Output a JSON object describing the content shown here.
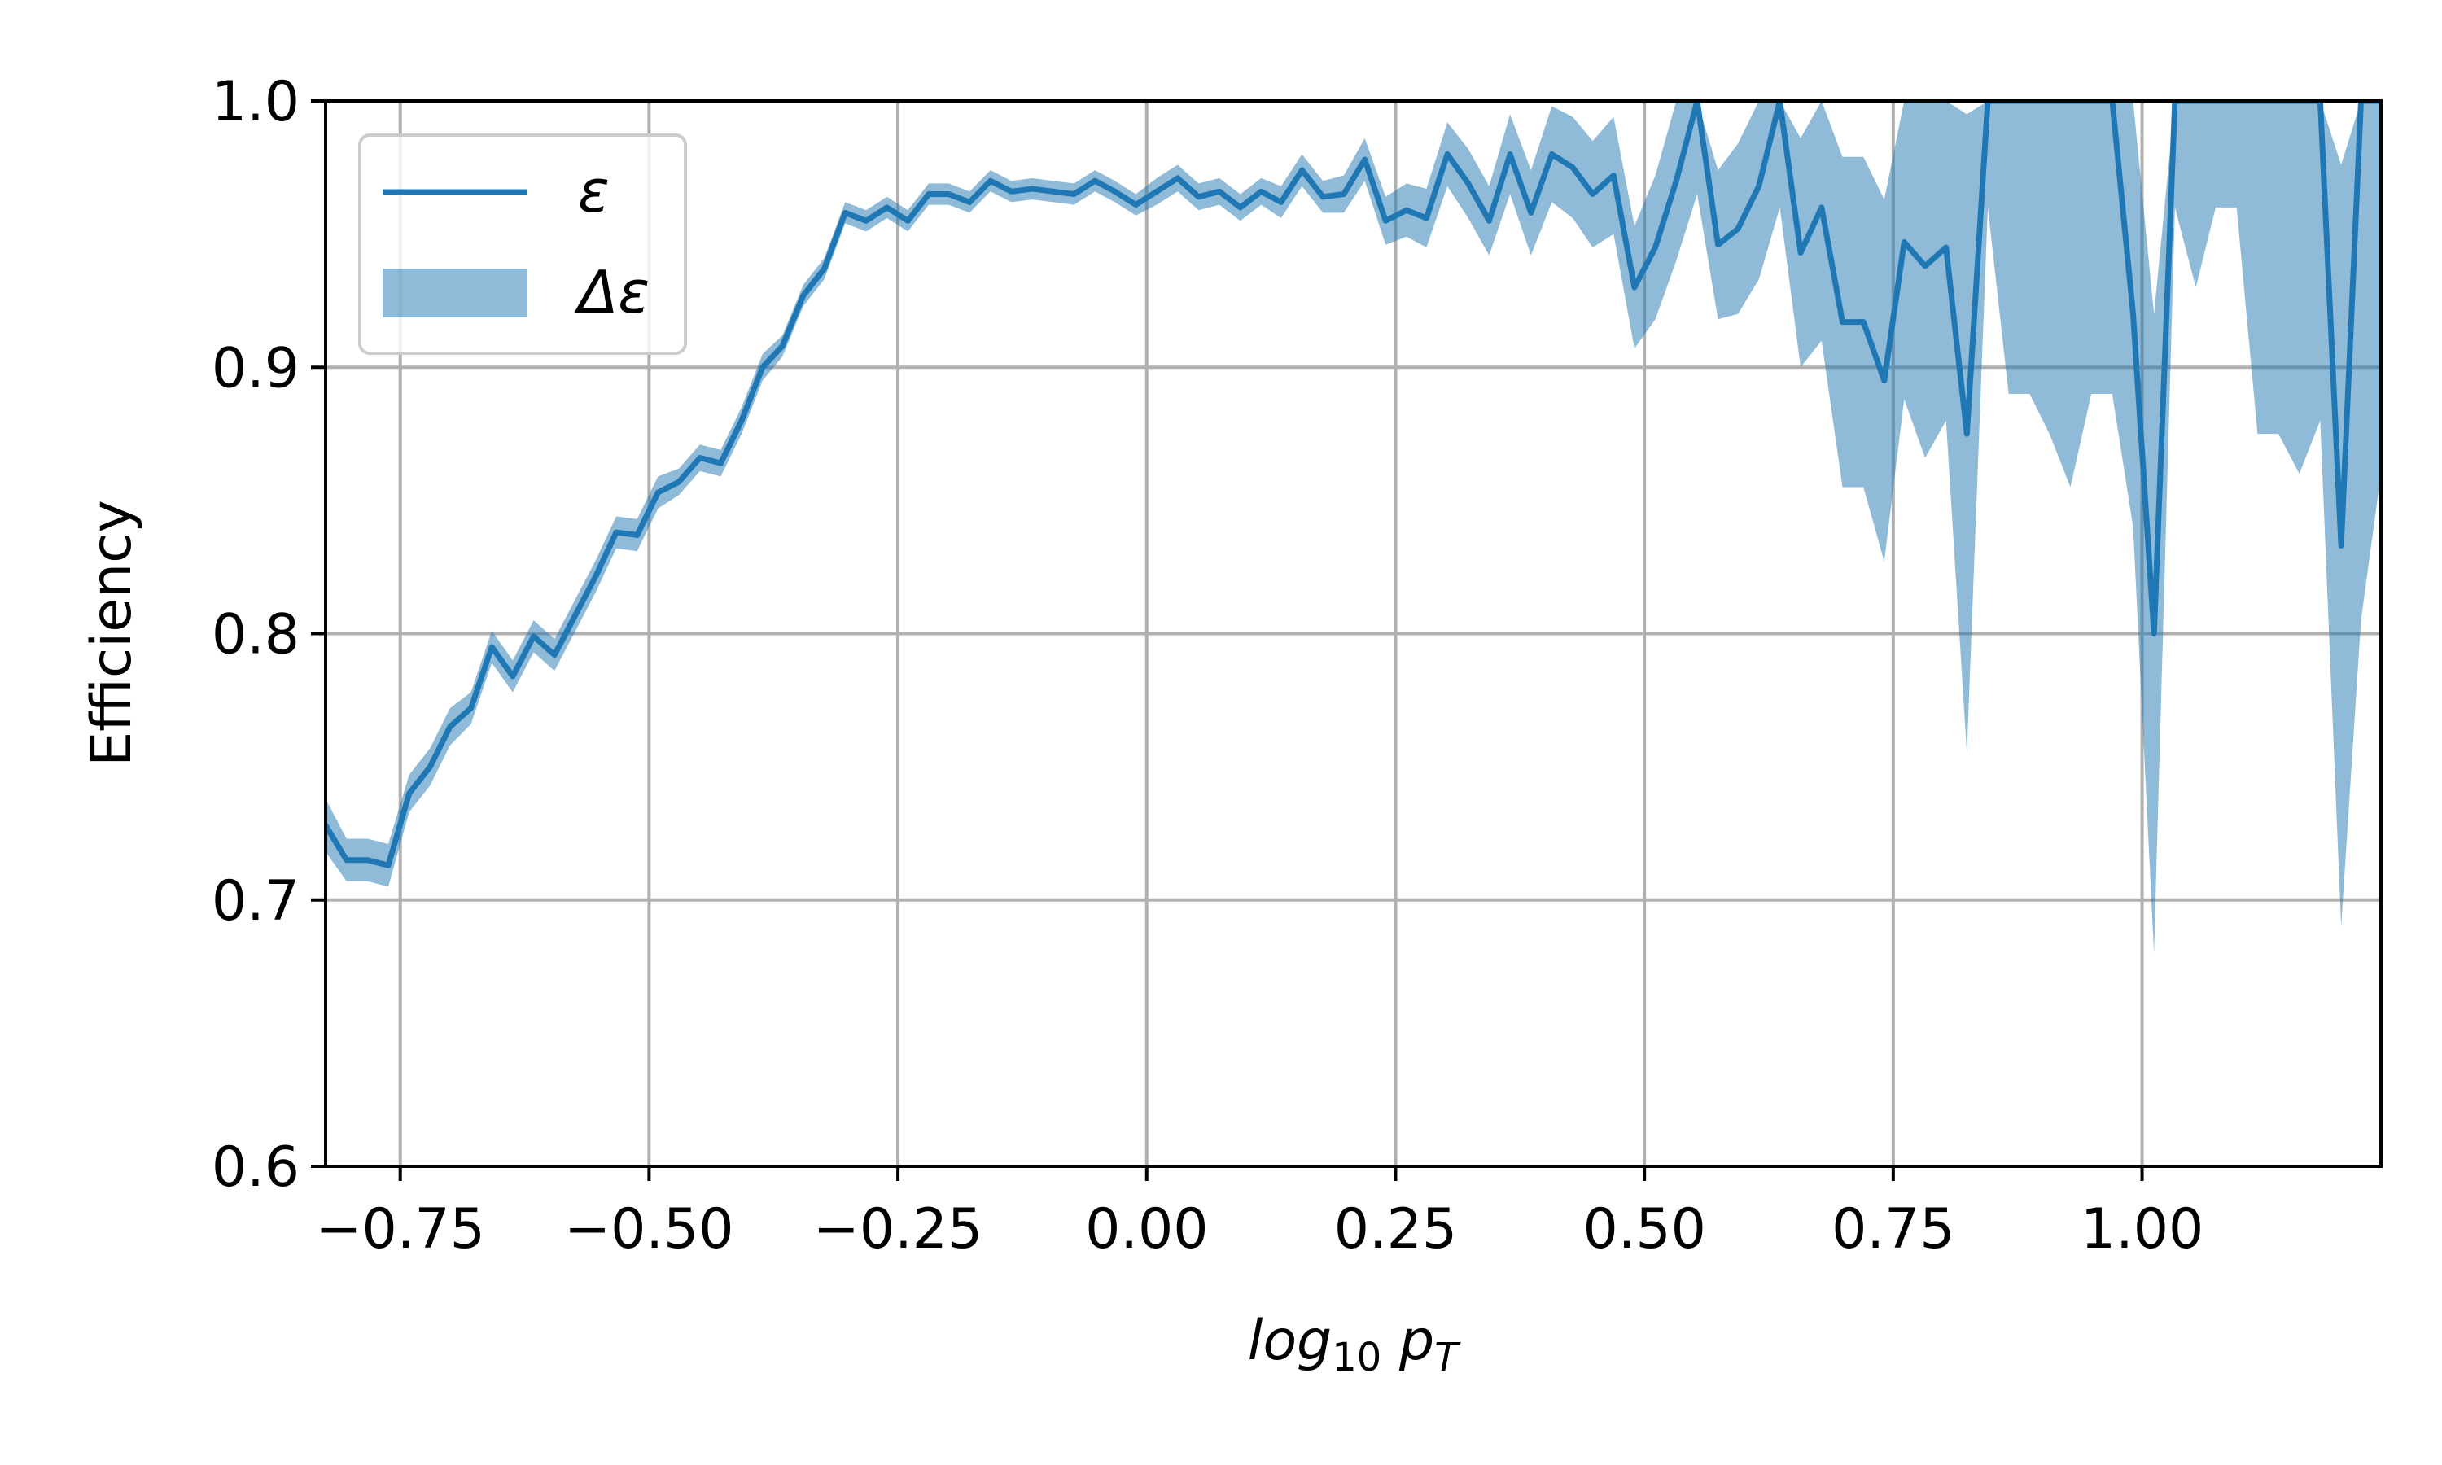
{
  "chart_data": {
    "type": "line",
    "xlabel_base": "log",
    "xlabel_sub": "10",
    "xlabel_var": "p",
    "xlabel_var_sub": "T",
    "ylabel": "Efficiency",
    "xlim": [
      -0.825,
      1.24
    ],
    "ylim": [
      0.6,
      1.0
    ],
    "xticks": [
      -0.75,
      -0.5,
      -0.25,
      0.0,
      0.25,
      0.5,
      0.75,
      1.0
    ],
    "xtick_labels": [
      "−0.75",
      "−0.50",
      "−0.25",
      "0.00",
      "0.25",
      "0.50",
      "0.75",
      "1.00"
    ],
    "yticks": [
      0.6,
      0.7,
      0.8,
      0.9,
      1.0
    ],
    "ytick_labels": [
      "0.6",
      "0.7",
      "0.8",
      "0.9",
      "1.0"
    ],
    "grid": true,
    "legend_position": "top-left",
    "colors": {
      "line": "#1f77b4",
      "band": "#1f77b4",
      "band_alpha": 0.5
    },
    "series": [
      {
        "name": "ε",
        "kind": "line",
        "x": [
          -0.825,
          -0.804,
          -0.783,
          -0.762,
          -0.741,
          -0.72,
          -0.7,
          -0.679,
          -0.658,
          -0.637,
          -0.616,
          -0.595,
          -0.574,
          -0.553,
          -0.533,
          -0.512,
          -0.491,
          -0.47,
          -0.449,
          -0.428,
          -0.407,
          -0.386,
          -0.366,
          -0.345,
          -0.324,
          -0.303,
          -0.282,
          -0.261,
          -0.24,
          -0.219,
          -0.199,
          -0.178,
          -0.157,
          -0.136,
          -0.115,
          -0.094,
          -0.073,
          -0.052,
          -0.032,
          -0.011,
          0.01,
          0.031,
          0.052,
          0.073,
          0.094,
          0.115,
          0.135,
          0.156,
          0.177,
          0.198,
          0.219,
          0.24,
          0.261,
          0.281,
          0.302,
          0.323,
          0.344,
          0.365,
          0.386,
          0.407,
          0.428,
          0.448,
          0.469,
          0.49,
          0.511,
          0.532,
          0.553,
          0.574,
          0.594,
          0.615,
          0.636,
          0.657,
          0.678,
          0.699,
          0.72,
          0.741,
          0.761,
          0.782,
          0.803,
          0.824,
          0.845,
          0.866,
          0.887,
          0.907,
          0.928,
          0.949,
          0.97,
          0.991,
          1.012,
          1.033,
          1.054,
          1.074,
          1.095,
          1.116,
          1.137,
          1.158,
          1.179,
          1.2,
          1.22,
          1.24
        ],
        "y": [
          0.728,
          0.715,
          0.715,
          0.713,
          0.74,
          0.75,
          0.765,
          0.772,
          0.795,
          0.784,
          0.799,
          0.792,
          0.807,
          0.822,
          0.838,
          0.837,
          0.853,
          0.857,
          0.866,
          0.864,
          0.88,
          0.9,
          0.908,
          0.927,
          0.937,
          0.958,
          0.955,
          0.96,
          0.955,
          0.965,
          0.965,
          0.962,
          0.97,
          0.966,
          0.967,
          0.966,
          0.965,
          0.97,
          0.966,
          0.961,
          0.966,
          0.971,
          0.964,
          0.966,
          0.96,
          0.966,
          0.962,
          0.974,
          0.964,
          0.965,
          0.978,
          0.955,
          0.959,
          0.956,
          0.98,
          0.969,
          0.955,
          0.98,
          0.958,
          0.98,
          0.975,
          0.965,
          0.972,
          0.93,
          0.945,
          0.97,
          1.0,
          0.946,
          0.952,
          0.968,
          1.0,
          0.943,
          0.96,
          0.917,
          0.917,
          0.895,
          0.947,
          0.938,
          0.945,
          0.875,
          1.0,
          1.0,
          1.0,
          1.0,
          1.0,
          1.0,
          1.0,
          0.92,
          0.8,
          1.0,
          1.0,
          1.0,
          1.0,
          1.0,
          1.0,
          1.0,
          1.0,
          0.833,
          1.0,
          1.0
        ]
      },
      {
        "name": "Δε",
        "kind": "band",
        "x": [
          -0.825,
          -0.804,
          -0.783,
          -0.762,
          -0.741,
          -0.72,
          -0.7,
          -0.679,
          -0.658,
          -0.637,
          -0.616,
          -0.595,
          -0.574,
          -0.553,
          -0.533,
          -0.512,
          -0.491,
          -0.47,
          -0.449,
          -0.428,
          -0.407,
          -0.386,
          -0.366,
          -0.345,
          -0.324,
          -0.303,
          -0.282,
          -0.261,
          -0.24,
          -0.219,
          -0.199,
          -0.178,
          -0.157,
          -0.136,
          -0.115,
          -0.094,
          -0.073,
          -0.052,
          -0.032,
          -0.011,
          0.01,
          0.031,
          0.052,
          0.073,
          0.094,
          0.115,
          0.135,
          0.156,
          0.177,
          0.198,
          0.219,
          0.24,
          0.261,
          0.281,
          0.302,
          0.323,
          0.344,
          0.365,
          0.386,
          0.407,
          0.428,
          0.448,
          0.469,
          0.49,
          0.511,
          0.532,
          0.553,
          0.574,
          0.594,
          0.615,
          0.636,
          0.657,
          0.678,
          0.699,
          0.72,
          0.741,
          0.761,
          0.782,
          0.803,
          0.824,
          0.845,
          0.866,
          0.887,
          0.907,
          0.928,
          0.949,
          0.97,
          0.991,
          1.012,
          1.033,
          1.054,
          1.074,
          1.095,
          1.116,
          1.137,
          1.158,
          1.179,
          1.2,
          1.22,
          1.24
        ],
        "lower": [
          0.718,
          0.707,
          0.707,
          0.705,
          0.733,
          0.743,
          0.758,
          0.766,
          0.789,
          0.778,
          0.793,
          0.786,
          0.801,
          0.816,
          0.832,
          0.831,
          0.847,
          0.852,
          0.861,
          0.859,
          0.875,
          0.895,
          0.904,
          0.923,
          0.933,
          0.954,
          0.951,
          0.956,
          0.951,
          0.961,
          0.961,
          0.958,
          0.966,
          0.962,
          0.963,
          0.962,
          0.961,
          0.966,
          0.962,
          0.957,
          0.961,
          0.966,
          0.959,
          0.961,
          0.955,
          0.961,
          0.956,
          0.968,
          0.958,
          0.958,
          0.97,
          0.946,
          0.949,
          0.945,
          0.968,
          0.956,
          0.942,
          0.965,
          0.942,
          0.962,
          0.956,
          0.945,
          0.95,
          0.907,
          0.918,
          0.94,
          0.965,
          0.918,
          0.92,
          0.933,
          0.96,
          0.9,
          0.91,
          0.855,
          0.855,
          0.827,
          0.888,
          0.866,
          0.88,
          0.755,
          0.96,
          0.89,
          0.89,
          0.875,
          0.855,
          0.89,
          0.89,
          0.84,
          0.68,
          0.96,
          0.93,
          0.96,
          0.96,
          0.875,
          0.875,
          0.86,
          0.88,
          0.69,
          0.805,
          0.86
        ],
        "upper": [
          0.738,
          0.723,
          0.723,
          0.721,
          0.747,
          0.757,
          0.772,
          0.778,
          0.801,
          0.79,
          0.805,
          0.798,
          0.813,
          0.828,
          0.844,
          0.843,
          0.859,
          0.862,
          0.871,
          0.869,
          0.885,
          0.905,
          0.912,
          0.931,
          0.941,
          0.962,
          0.959,
          0.964,
          0.959,
          0.969,
          0.969,
          0.966,
          0.974,
          0.97,
          0.971,
          0.97,
          0.969,
          0.974,
          0.97,
          0.965,
          0.971,
          0.976,
          0.969,
          0.971,
          0.965,
          0.971,
          0.968,
          0.98,
          0.97,
          0.972,
          0.986,
          0.964,
          0.969,
          0.967,
          0.992,
          0.982,
          0.968,
          0.995,
          0.974,
          0.998,
          0.994,
          0.985,
          0.994,
          0.953,
          0.972,
          1.0,
          1.0,
          0.974,
          0.984,
          1.0,
          1.0,
          0.986,
          1.0,
          0.979,
          0.979,
          0.963,
          1.0,
          1.0,
          1.0,
          0.995,
          1.0,
          1.0,
          1.0,
          1.0,
          1.0,
          1.0,
          1.0,
          1.0,
          0.92,
          1.0,
          1.0,
          1.0,
          1.0,
          1.0,
          1.0,
          1.0,
          1.0,
          0.976,
          1.0,
          1.0
        ]
      }
    ]
  }
}
